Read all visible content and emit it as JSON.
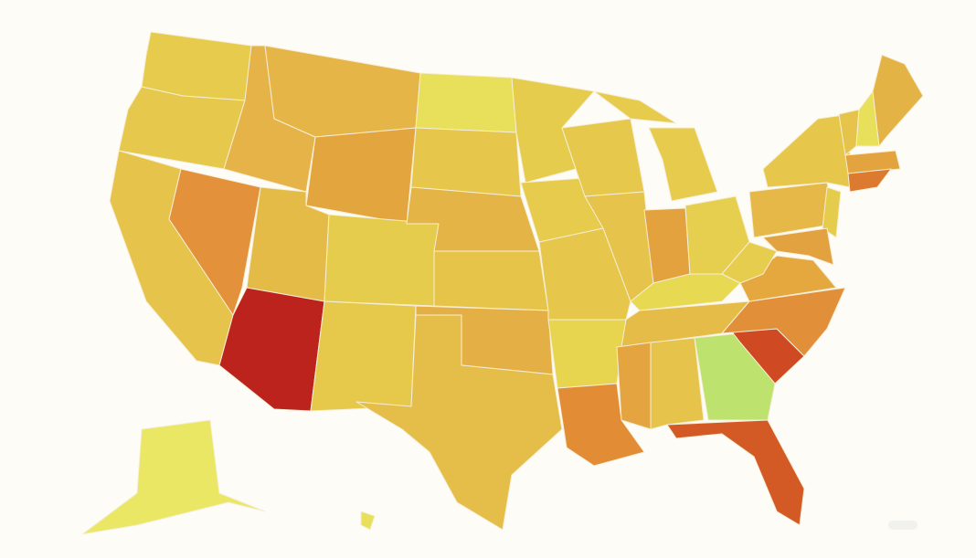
{
  "map": {
    "regions": [
      {
        "color": "#e6cb4c"
      },
      {
        "color": "#e6c84c"
      },
      {
        "color": "#e6c44b"
      },
      {
        "color": "#e3913a"
      },
      {
        "color": "#e5b347"
      },
      {
        "color": "#e5b547"
      },
      {
        "color": "#e3a63f"
      },
      {
        "color": "#e5bb48"
      },
      {
        "color": "#bb231c"
      },
      {
        "color": "#e6cc4c"
      },
      {
        "color": "#e6c84b"
      },
      {
        "color": "#e8e05a"
      },
      {
        "color": "#e6c64b"
      },
      {
        "color": "#e4b446"
      },
      {
        "color": "#e6c44a"
      },
      {
        "color": "#e4b045"
      },
      {
        "color": "#e5bd49"
      },
      {
        "color": "#e6cc4c"
      },
      {
        "color": "#e6cb4c"
      },
      {
        "color": "#e6c64b"
      },
      {
        "color": "#e7d550"
      },
      {
        "color": "#e28c36"
      },
      {
        "color": "#e6c84c"
      },
      {
        "color": "#e6c44b"
      },
      {
        "color": "#e6cb4c"
      },
      {
        "color": "#e6cb4c"
      },
      {
        "color": "#e3a23e"
      },
      {
        "color": "#e6cf4e"
      },
      {
        "color": "#e8d952"
      },
      {
        "color": "#e5bc48"
      },
      {
        "color": "#e4a541"
      },
      {
        "color": "#e6c44b"
      },
      {
        "color": "#bde36e"
      },
      {
        "color": "#d45a25"
      },
      {
        "color": "#cf4a22"
      },
      {
        "color": "#e28f3a"
      },
      {
        "color": "#e4a83f"
      },
      {
        "color": "#e6cd4e"
      },
      {
        "color": "#e5b847"
      },
      {
        "color": "#e6c74b"
      },
      {
        "color": "#e6cc4c"
      },
      {
        "color": "#e3a240"
      },
      {
        "color": "#e6c44b"
      },
      {
        "color": "#e8e05a"
      },
      {
        "color": "#e4b345"
      },
      {
        "color": "#e3a33f"
      },
      {
        "color": "#dc7b30"
      },
      {
        "color": "#e9e764"
      },
      {
        "color": "#e8e05a"
      }
    ]
  }
}
